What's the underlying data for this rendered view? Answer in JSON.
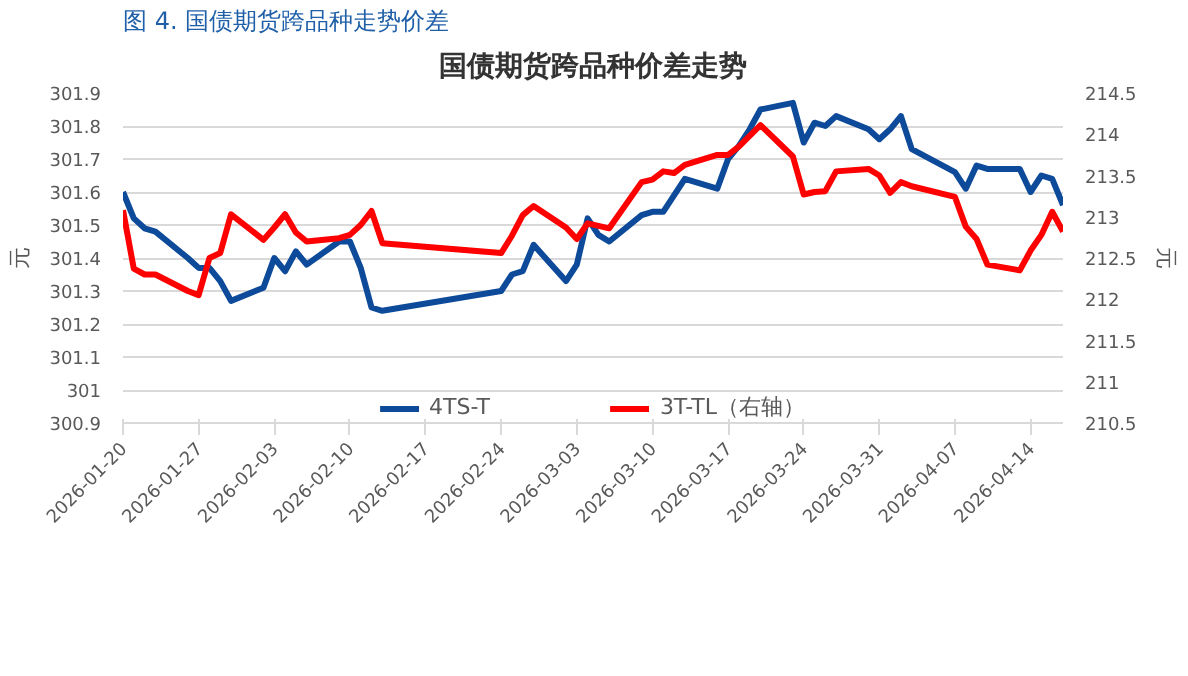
{
  "chart_data": {
    "type": "line",
    "title": "国债期货跨品种价差走势",
    "annotations": [
      "图 4.  国债期货跨品种走势价差"
    ],
    "ylabel": "元",
    "y2label": "元",
    "x": [
      "2026-01-20",
      "2026-01-21",
      "2026-01-22",
      "2026-01-23",
      "2026-01-26",
      "2026-01-27",
      "2026-01-28",
      "2026-01-29",
      "2026-01-30",
      "2026-02-02",
      "2026-02-03",
      "2026-02-04",
      "2026-02-05",
      "2026-02-06",
      "2026-02-09",
      "2026-02-10",
      "2026-02-11",
      "2026-02-12",
      "2026-02-13",
      "2026-02-24",
      "2026-02-25",
      "2026-02-26",
      "2026-02-27",
      "2026-03-02",
      "2026-03-03",
      "2026-03-04",
      "2026-03-05",
      "2026-03-06",
      "2026-03-09",
      "2026-03-10",
      "2026-03-11",
      "2026-03-12",
      "2026-03-13",
      "2026-03-16",
      "2026-03-17",
      "2026-03-18",
      "2026-03-19",
      "2026-03-20",
      "2026-03-23",
      "2026-03-24",
      "2026-03-25",
      "2026-03-26",
      "2026-03-27",
      "2026-03-30",
      "2026-03-31",
      "2026-04-01",
      "2026-04-02",
      "2026-04-03",
      "2026-04-07",
      "2026-04-08",
      "2026-04-09",
      "2026-04-10",
      "2026-04-13",
      "2026-04-14",
      "2026-04-15",
      "2026-04-16",
      "2026-04-17"
    ],
    "series": [
      {
        "name": "4TS-T",
        "color": "#0d4a9a",
        "values": [
          301.6,
          301.52,
          301.49,
          301.48,
          301.4,
          301.37,
          301.37,
          301.33,
          301.27,
          301.31,
          301.4,
          301.36,
          301.42,
          301.38,
          301.45,
          301.45,
          301.37,
          301.25,
          301.24,
          301.3,
          301.35,
          301.36,
          301.44,
          301.33,
          301.38,
          301.52,
          301.47,
          301.45,
          301.53,
          301.54,
          301.54,
          301.59,
          301.64,
          301.61,
          301.7,
          301.74,
          301.79,
          301.85,
          301.87,
          301.75,
          301.81,
          301.8,
          301.83,
          301.79,
          301.76,
          301.79,
          301.83,
          301.73,
          301.66,
          301.61,
          301.68,
          301.67,
          301.67,
          301.6,
          301.65,
          301.64,
          301.56
        ]
      },
      {
        "name": "3T-TL（右轴）",
        "color": "#ff0000",
        "axis": "y2",
        "values": [
          213.08,
          212.37,
          212.3,
          212.3,
          212.1,
          212.05,
          212.5,
          212.56,
          213.03,
          212.72,
          212.87,
          213.03,
          212.81,
          212.7,
          212.74,
          212.78,
          212.9,
          213.07,
          212.68,
          212.56,
          212.77,
          213.02,
          213.13,
          212.87,
          212.73,
          212.92,
          212.89,
          212.86,
          213.42,
          213.45,
          213.55,
          213.53,
          213.63,
          213.75,
          213.75,
          213.85,
          213.98,
          214.11,
          213.73,
          213.27,
          213.3,
          213.31,
          213.55,
          213.58,
          213.5,
          213.29,
          213.42,
          213.37,
          213.24,
          212.88,
          212.73,
          212.42,
          212.35,
          212.59,
          212.78,
          213.06,
          212.82
        ]
      }
    ],
    "xlim": [
      "2026-01-20",
      "2026-04-17"
    ],
    "xticks": [
      "2026-01-20",
      "2026-01-27",
      "2026-02-03",
      "2026-02-10",
      "2026-02-17",
      "2026-02-24",
      "2026-03-03",
      "2026-03-10",
      "2026-03-17",
      "2026-03-24",
      "2026-03-31",
      "2026-04-07",
      "2026-04-14"
    ],
    "ylim": [
      300.9,
      301.9
    ],
    "yticks": [
      300.9,
      301,
      301.1,
      301.2,
      301.3,
      301.4,
      301.5,
      301.6,
      301.7,
      301.8,
      301.9
    ],
    "y2lim": [
      210.5,
      214.5
    ],
    "y2ticks": [
      210.5,
      211,
      211.5,
      212,
      212.5,
      213,
      213.5,
      214,
      214.5
    ],
    "grid": "y",
    "legend": "bottom",
    "line_style": "solid",
    "marker": "none"
  }
}
